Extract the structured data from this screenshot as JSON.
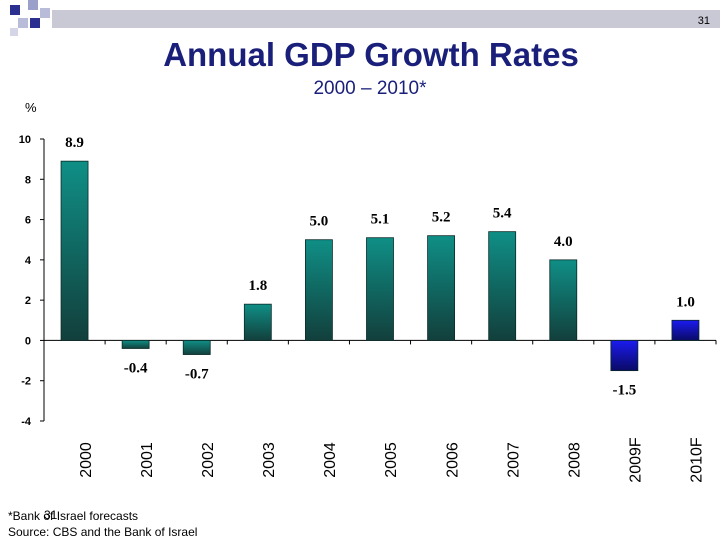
{
  "header": {
    "page_number": "31"
  },
  "chart_data": {
    "type": "bar",
    "title": "Annual GDP Growth Rates",
    "subtitle": "2000 – 2010*",
    "ylabel": "%",
    "xlabel": "",
    "ylim": [
      -4,
      10
    ],
    "yticks": [
      10,
      8,
      6,
      4,
      2,
      0,
      -2,
      -4
    ],
    "categories": [
      "2000",
      "2001",
      "2002",
      "2003",
      "2004",
      "2005",
      "2006",
      "2007",
      "2008",
      "2009F",
      "2010F"
    ],
    "values": [
      8.9,
      -0.4,
      -0.7,
      1.8,
      5.0,
      5.1,
      5.2,
      5.4,
      4.0,
      -1.5,
      1.0
    ],
    "labels": [
      "8.9",
      "-0.4",
      "-0.7",
      "1.8",
      "5.0",
      "5.1",
      "5.2",
      "5.4",
      "4.0",
      "-1.5",
      "1.0"
    ],
    "forecast": [
      false,
      false,
      false,
      false,
      false,
      false,
      false,
      false,
      false,
      true,
      true
    ],
    "grid": false,
    "colors": {
      "actual_top": "#0f8f86",
      "actual_bottom": "#123f3c",
      "forecast_top": "#1b1bf0",
      "forecast_bottom": "#0a0a66"
    }
  },
  "footnote": {
    "line1": "*Bank of Israel forecasts",
    "line2": "Source: CBS and the Bank of Israel",
    "ghost": "31"
  }
}
